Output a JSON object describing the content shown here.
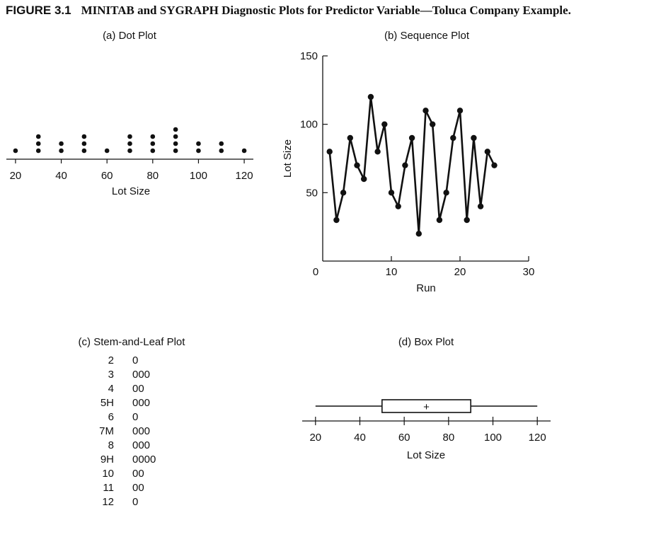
{
  "figure": {
    "number": "FIGURE 3.1",
    "title": "MINITAB and SYGRAPH Diagnostic Plots for Predictor Variable—Toluca Company Example."
  },
  "chart_data": [
    {
      "type": "dot",
      "title": "(a) Dot Plot",
      "xlabel": "Lot Size",
      "xticks": [
        20,
        40,
        60,
        80,
        100,
        120
      ],
      "xlim": [
        16,
        124
      ],
      "values": [
        20,
        30,
        30,
        30,
        40,
        40,
        50,
        50,
        50,
        60,
        70,
        70,
        70,
        80,
        80,
        80,
        90,
        90,
        90,
        90,
        100,
        100,
        110,
        110,
        120
      ]
    },
    {
      "type": "line",
      "title": "(b) Sequence Plot",
      "xlabel": "Run",
      "ylabel": "Lot Size",
      "xticks": [
        0,
        10,
        20,
        30
      ],
      "yticks": [
        50,
        100,
        150
      ],
      "xlim": [
        0,
        30
      ],
      "ylim": [
        0,
        150
      ],
      "x": [
        1,
        2,
        3,
        4,
        5,
        6,
        7,
        8,
        9,
        10,
        11,
        12,
        13,
        14,
        15,
        16,
        17,
        18,
        19,
        20,
        21,
        22,
        23,
        24,
        25
      ],
      "y": [
        80,
        30,
        50,
        90,
        70,
        60,
        120,
        80,
        100,
        50,
        40,
        70,
        90,
        20,
        110,
        100,
        30,
        50,
        90,
        110,
        30,
        90,
        40,
        80,
        70
      ]
    },
    {
      "type": "table",
      "title": "(c) Stem-and-Leaf Plot",
      "rows": [
        {
          "stem": "2",
          "leaf": "0"
        },
        {
          "stem": "3",
          "leaf": "000"
        },
        {
          "stem": "4",
          "leaf": "00"
        },
        {
          "stem": "5H",
          "leaf": "000"
        },
        {
          "stem": "6",
          "leaf": "0"
        },
        {
          "stem": "7M",
          "leaf": "000"
        },
        {
          "stem": "8",
          "leaf": "000"
        },
        {
          "stem": "9H",
          "leaf": "0000"
        },
        {
          "stem": "10",
          "leaf": "00"
        },
        {
          "stem": "11",
          "leaf": "00"
        },
        {
          "stem": "12",
          "leaf": "0"
        }
      ]
    },
    {
      "type": "box",
      "title": "(d) Box Plot",
      "xlabel": "Lot Size",
      "xticks": [
        20,
        40,
        60,
        80,
        100,
        120
      ],
      "xlim": [
        14,
        126
      ],
      "min": 20,
      "q1": 50,
      "median": 70,
      "mean": 70,
      "q3": 90,
      "max": 120,
      "mean_marker": "+"
    }
  ]
}
